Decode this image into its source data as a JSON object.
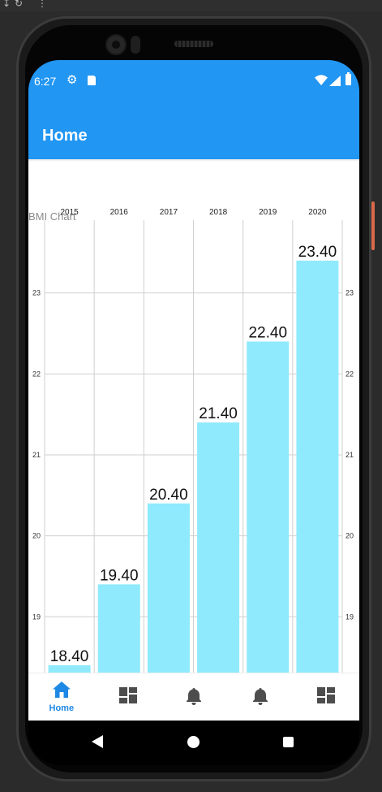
{
  "status_bar": {
    "time": "6:27"
  },
  "app_bar": {
    "title": "Home"
  },
  "chart_data": {
    "type": "bar",
    "description": "BMI Chart",
    "categories": [
      "2015",
      "2016",
      "2017",
      "2018",
      "2019",
      "2020"
    ],
    "values": [
      18.4,
      19.4,
      20.4,
      21.4,
      22.4,
      23.4
    ],
    "value_labels": [
      "18.40",
      "19.40",
      "20.40",
      "21.40",
      "22.40",
      "23.40"
    ],
    "y_ticks": [
      19,
      20,
      21,
      22,
      23
    ],
    "ylim": [
      18.3,
      23.9
    ],
    "x_axis_position": "top",
    "y_axis": "both-sides",
    "grid": true,
    "bar_color": "#8feafd"
  },
  "bottom_nav": {
    "items": [
      {
        "name": "home",
        "label": "Home",
        "icon": "home-icon",
        "active": true
      },
      {
        "name": "dashboard",
        "label": "",
        "icon": "dashboard-icon",
        "active": false
      },
      {
        "name": "notifications",
        "label": "",
        "icon": "bell-icon",
        "active": false
      },
      {
        "name": "notifications-2",
        "label": "",
        "icon": "bell-icon",
        "active": false
      },
      {
        "name": "dashboard-2",
        "label": "",
        "icon": "dashboard-icon",
        "active": false
      }
    ],
    "active_color": "#1e88e5",
    "inactive_color": "#4d4d4d"
  },
  "colors": {
    "primary": "#2196f3"
  }
}
